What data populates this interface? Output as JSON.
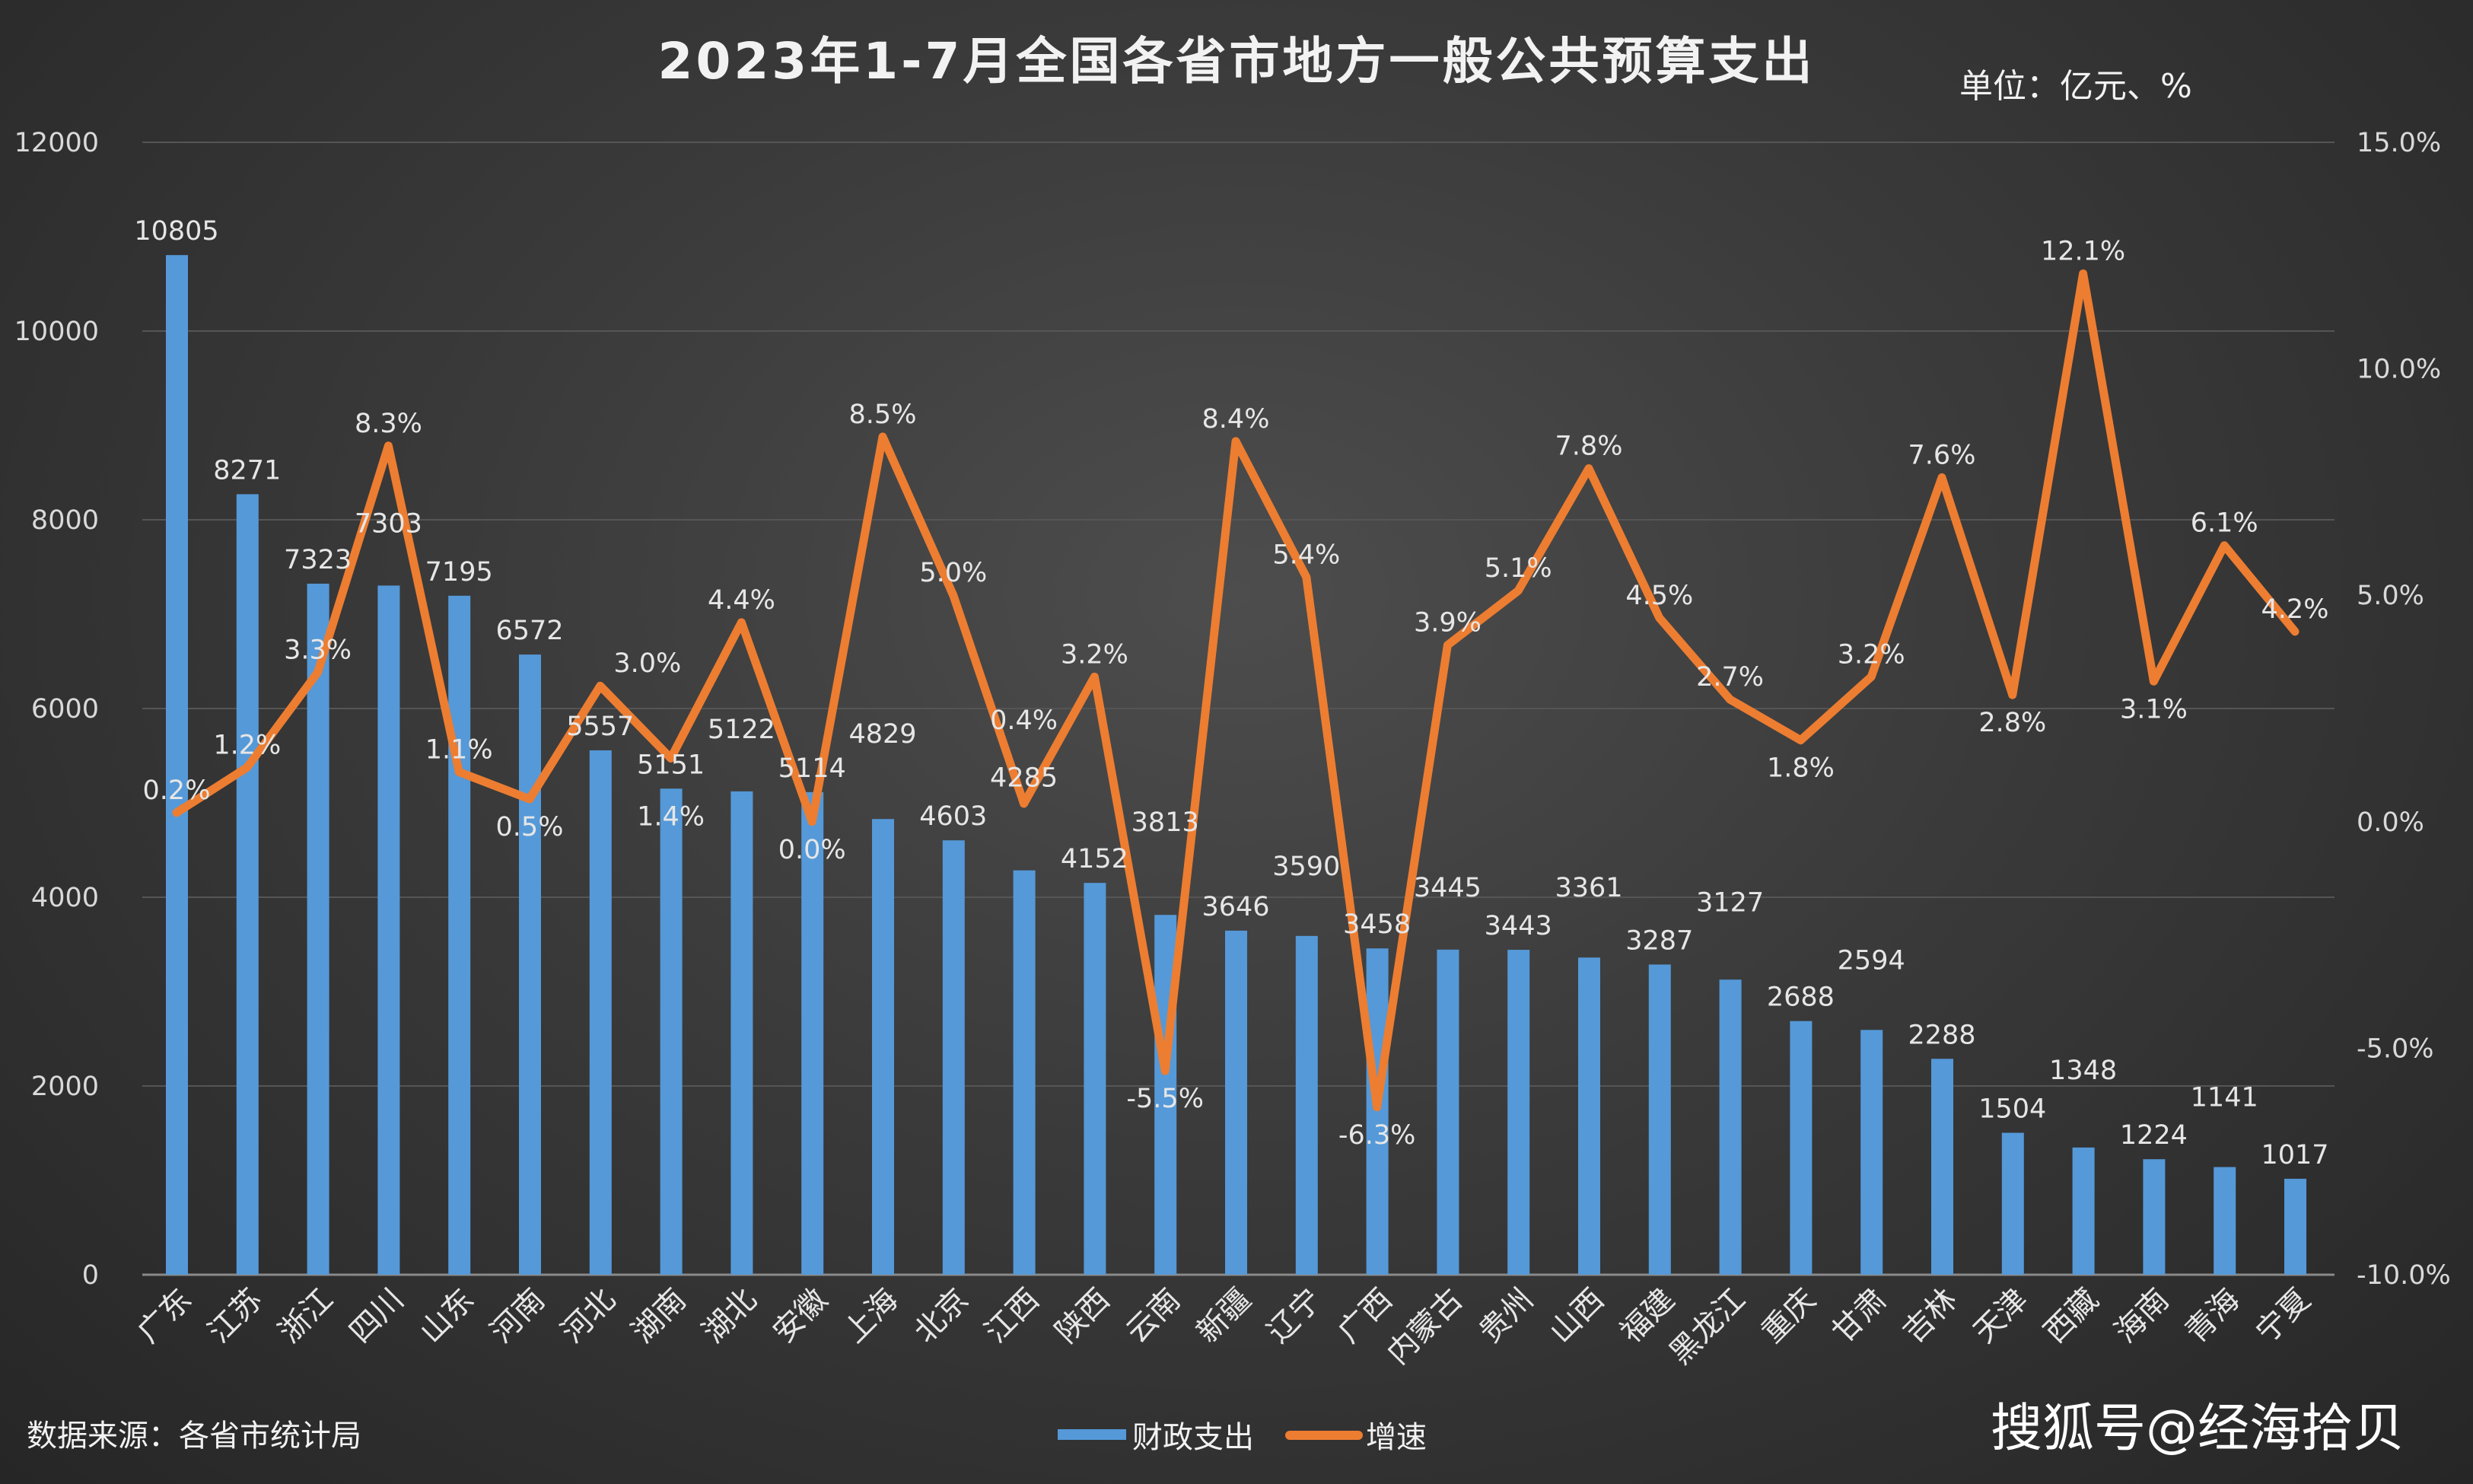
{
  "chart_data": {
    "type": "bar+line",
    "title": "2023年1-7月全国各省市地方一般公共预算支出",
    "unit_label": "单位：亿元、%",
    "source": "数据来源：各省市统计局",
    "watermark": "搜狐号@经海拾贝",
    "categories": [
      "广东",
      "江苏",
      "浙江",
      "四川",
      "山东",
      "河南",
      "河北",
      "湖南",
      "湖北",
      "安徽",
      "上海",
      "北京",
      "江西",
      "陕西",
      "云南",
      "新疆",
      "辽宁",
      "广西",
      "内蒙古",
      "贵州",
      "山西",
      "福建",
      "黑龙江",
      "重庆",
      "甘肃",
      "吉林",
      "天津",
      "西藏",
      "海南",
      "青海",
      "宁夏"
    ],
    "series": [
      {
        "name": "财政支出",
        "type": "bar",
        "axis": "left",
        "color": "#5599d8",
        "values": [
          10805,
          8271,
          7323,
          7303,
          7195,
          6572,
          5557,
          5151,
          5122,
          5114,
          4829,
          4603,
          4285,
          4152,
          3813,
          3646,
          3590,
          3458,
          3445,
          3443,
          3361,
          3287,
          3127,
          2688,
          2594,
          2288,
          1504,
          1348,
          1224,
          1141,
          1017
        ]
      },
      {
        "name": "增速",
        "type": "line",
        "axis": "right",
        "color": "#ed7d31",
        "values": [
          0.2,
          1.2,
          3.3,
          8.3,
          1.1,
          0.5,
          3.0,
          1.4,
          4.4,
          0.0,
          8.5,
          5.0,
          0.4,
          3.2,
          -5.5,
          8.4,
          5.4,
          -6.3,
          3.9,
          5.1,
          7.8,
          4.5,
          2.7,
          1.8,
          3.2,
          7.6,
          2.8,
          12.1,
          3.1,
          6.1,
          4.2
        ]
      }
    ],
    "left_axis": {
      "ylim": [
        0,
        12000
      ],
      "ticks": [
        "0",
        "2000",
        "4000",
        "6000",
        "8000",
        "10000",
        "12000"
      ]
    },
    "right_axis": {
      "ylim": [
        -10,
        15
      ],
      "ticks": [
        "-10.0%",
        "-5.0%",
        "0.0%",
        "5.0%",
        "10.0%",
        "15.0%"
      ]
    },
    "grid": true,
    "legend": "bottom-center"
  }
}
